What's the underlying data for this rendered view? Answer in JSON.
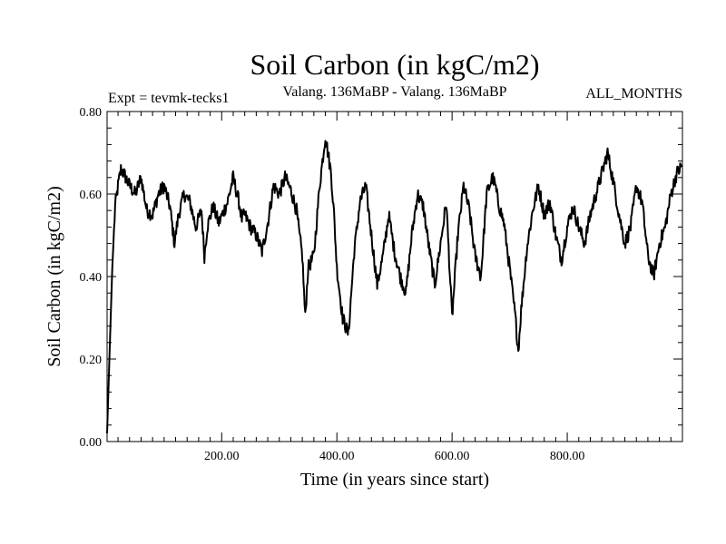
{
  "chart_data": {
    "type": "line",
    "title": "Soil Carbon (in kgC/m2)",
    "subtitle": "Valang. 136MaBP - Valang. 136MaBP",
    "expt_label": "Expt = tevmk-tecks1",
    "period_label": "ALL_MONTHS",
    "xlabel": "Time (in years since start)",
    "ylabel": "Soil Carbon (in kgC/m2)",
    "xlim": [
      1,
      1000
    ],
    "ylim": [
      0,
      0.8
    ],
    "x_ticks": [
      {
        "value": 200,
        "label": "200.00"
      },
      {
        "value": 400,
        "label": "400.00"
      },
      {
        "value": 600,
        "label": "600.00"
      },
      {
        "value": 800,
        "label": "800.00"
      }
    ],
    "y_ticks": [
      {
        "value": 0.0,
        "label": "0.00"
      },
      {
        "value": 0.2,
        "label": "0.20"
      },
      {
        "value": 0.4,
        "label": "0.40"
      },
      {
        "value": 0.6,
        "label": "0.60"
      },
      {
        "value": 0.8,
        "label": "0.80"
      }
    ],
    "series": [
      {
        "name": "Soil Carbon",
        "x": [
          1,
          5,
          10,
          15,
          20,
          25,
          30,
          40,
          50,
          60,
          70,
          80,
          90,
          100,
          110,
          118,
          125,
          135,
          145,
          155,
          165,
          170,
          175,
          185,
          195,
          210,
          220,
          230,
          235,
          240,
          250,
          260,
          270,
          280,
          290,
          300,
          310,
          320,
          330,
          335,
          340,
          345,
          350,
          360,
          370,
          380,
          390,
          395,
          400,
          410,
          420,
          430,
          440,
          450,
          460,
          470,
          480,
          490,
          500,
          510,
          520,
          530,
          540,
          550,
          560,
          570,
          580,
          590,
          600,
          610,
          620,
          630,
          640,
          650,
          660,
          670,
          675,
          680,
          690,
          700,
          710,
          715,
          720,
          730,
          740,
          750,
          760,
          770,
          780,
          790,
          800,
          810,
          820,
          830,
          840,
          850,
          860,
          870,
          880,
          890,
          900,
          910,
          920,
          930,
          940,
          950,
          960,
          970,
          980,
          990,
          1000
        ],
        "values": [
          0.02,
          0.2,
          0.42,
          0.57,
          0.62,
          0.66,
          0.65,
          0.62,
          0.6,
          0.64,
          0.56,
          0.55,
          0.6,
          0.62,
          0.57,
          0.48,
          0.55,
          0.6,
          0.58,
          0.52,
          0.56,
          0.45,
          0.52,
          0.57,
          0.53,
          0.58,
          0.64,
          0.58,
          0.54,
          0.55,
          0.52,
          0.5,
          0.46,
          0.53,
          0.62,
          0.6,
          0.64,
          0.61,
          0.56,
          0.5,
          0.45,
          0.3,
          0.42,
          0.45,
          0.62,
          0.74,
          0.65,
          0.55,
          0.42,
          0.3,
          0.26,
          0.46,
          0.58,
          0.62,
          0.5,
          0.38,
          0.45,
          0.55,
          0.46,
          0.4,
          0.36,
          0.5,
          0.6,
          0.57,
          0.47,
          0.38,
          0.48,
          0.58,
          0.3,
          0.5,
          0.62,
          0.56,
          0.45,
          0.4,
          0.6,
          0.64,
          0.62,
          0.58,
          0.53,
          0.42,
          0.3,
          0.22,
          0.32,
          0.47,
          0.56,
          0.62,
          0.55,
          0.58,
          0.5,
          0.44,
          0.52,
          0.57,
          0.52,
          0.48,
          0.55,
          0.6,
          0.65,
          0.7,
          0.63,
          0.55,
          0.48,
          0.52,
          0.62,
          0.58,
          0.45,
          0.4,
          0.48,
          0.52,
          0.6,
          0.65,
          0.67
        ]
      }
    ]
  }
}
